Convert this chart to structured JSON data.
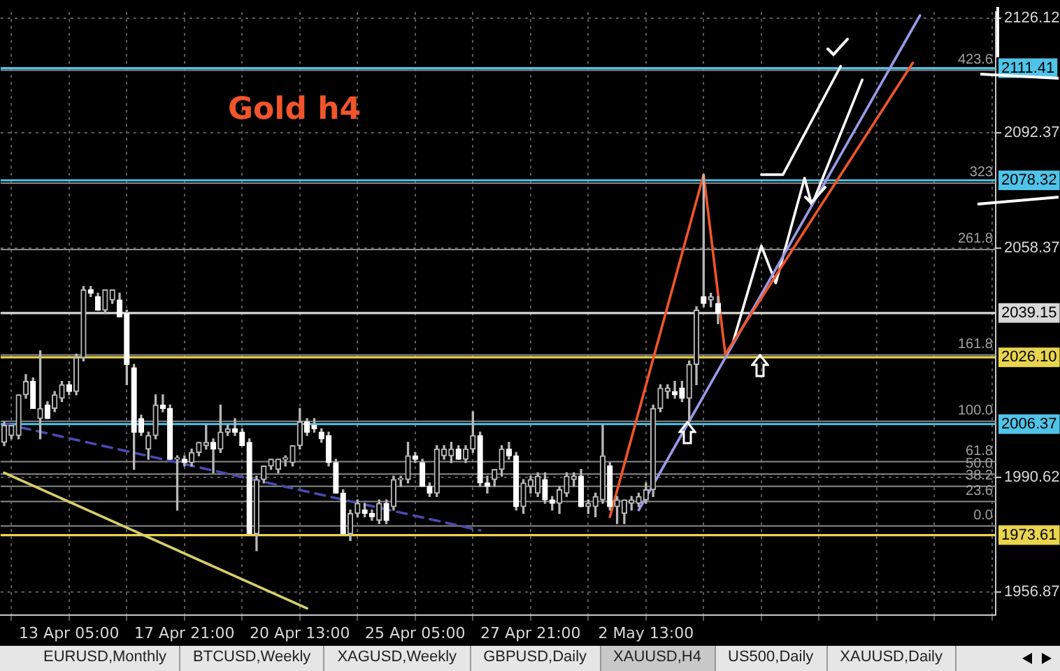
{
  "chart_data": {
    "type": "candlestick",
    "title": "Gold h4",
    "categories": [
      null,
      null,
      null,
      null,
      null,
      null,
      null,
      null,
      null,
      "13 Apr 05:00",
      null,
      null,
      null,
      null,
      null,
      null,
      null,
      null,
      null,
      null,
      null,
      null,
      null,
      null,
      null,
      "17 Apr 21:00",
      null,
      null,
      null,
      null,
      null,
      null,
      null,
      null,
      null,
      null,
      null,
      null,
      null,
      null,
      null,
      "20 Apr 13:00",
      null,
      null,
      null,
      null,
      null,
      null,
      null,
      null,
      null,
      null,
      null,
      null,
      null,
      null,
      null,
      "25 Apr 05:00",
      null,
      null,
      null,
      null,
      null,
      null,
      null,
      null,
      null,
      null,
      null,
      null,
      null,
      null,
      null,
      "27 Apr 21:00",
      null,
      null,
      null,
      null,
      null,
      null,
      null,
      null,
      null,
      null,
      null,
      null,
      null,
      null,
      null,
      "2 May 13:00",
      null,
      null,
      null,
      null,
      null,
      null,
      null,
      null,
      null,
      null,
      null,
      null,
      null,
      null,
      null,
      null,
      null,
      null,
      null,
      null,
      null,
      null,
      null,
      null,
      null,
      null,
      null,
      null,
      null,
      null,
      null,
      null,
      null,
      null,
      null,
      null,
      null,
      null,
      null,
      null,
      null,
      null,
      null,
      null,
      null,
      null,
      null,
      null
    ],
    "ohlc": [
      [
        2001,
        2007,
        2000,
        2006
      ],
      [
        2003,
        2006,
        2002,
        2006
      ],
      [
        2003,
        2015,
        2002,
        2015
      ],
      [
        2015,
        2021,
        2014,
        2019
      ],
      [
        2019,
        2020,
        2011,
        2011
      ],
      [
        2008,
        2028,
        2002,
        2011
      ],
      [
        2012,
        2013,
        2008,
        2008
      ],
      [
        2011,
        2016,
        2010,
        2015
      ],
      [
        2014,
        2019,
        2013,
        2018
      ],
      [
        2018,
        2019,
        2015,
        2016
      ],
      [
        2016,
        2027,
        2015,
        2026
      ],
      [
        2026,
        2047,
        2025,
        2046
      ],
      [
        2046,
        2047,
        2044,
        2045
      ],
      [
        2044,
        2045,
        2040,
        2040
      ],
      [
        2040,
        2046,
        2039,
        2046
      ],
      [
        2043,
        2046,
        2042,
        2046
      ],
      [
        2043,
        2045,
        2038,
        2038
      ],
      [
        2039,
        2040,
        2018,
        2024
      ],
      [
        2023,
        2024,
        1993,
        2004
      ],
      [
        2008,
        2009,
        2003,
        2004
      ],
      [
        1999,
        2004,
        1996,
        2003
      ],
      [
        2003,
        2015,
        2002,
        2012
      ],
      [
        2012,
        2015,
        2010,
        2011
      ],
      [
        2011,
        2012,
        1996,
        1996
      ],
      [
        1996,
        1997,
        1981,
        1996
      ],
      [
        1996,
        1997,
        1994,
        1995
      ],
      [
        1995,
        1999,
        1994,
        1998
      ],
      [
        1998,
        2001,
        1997,
        2001
      ],
      [
        2000,
        2006,
        1999,
        2001
      ],
      [
        2001,
        2002,
        1992,
        1999
      ],
      [
        1999,
        2012,
        1998,
        2004
      ],
      [
        2004,
        2006,
        2003,
        2005
      ],
      [
        2005,
        2008,
        2003,
        2004
      ],
      [
        2004,
        2005,
        2000,
        2000
      ],
      [
        2001,
        2002,
        1974,
        1974
      ],
      [
        1974,
        1991,
        1969,
        1990
      ],
      [
        1990,
        1994,
        1989,
        1994
      ],
      [
        1994,
        1996,
        1993,
        1996
      ],
      [
        1993,
        1996,
        1992,
        1996
      ],
      [
        1996,
        1997,
        1994,
        1996
      ],
      [
        1995,
        2000,
        1994,
        2000
      ],
      [
        2000,
        2011,
        1999,
        2007
      ],
      [
        2007,
        2008,
        2003,
        2004
      ],
      [
        2006,
        2008,
        2004,
        2005
      ],
      [
        2004,
        2005,
        2001,
        2002
      ],
      [
        2003,
        2004,
        1994,
        1995
      ],
      [
        1995,
        1996,
        1986,
        1986
      ],
      [
        1986,
        1987,
        1974,
        1974
      ],
      [
        1974,
        1981,
        1972,
        1980
      ],
      [
        1980,
        1984,
        1979,
        1983
      ],
      [
        1981,
        1983,
        1979,
        1980
      ],
      [
        1980,
        1981,
        1978,
        1979
      ],
      [
        1978,
        1984,
        1977,
        1983
      ],
      [
        1983,
        1984,
        1977,
        1978
      ],
      [
        1982,
        1991,
        1981,
        1990
      ],
      [
        1990,
        1991,
        1988,
        1990
      ],
      [
        1990,
        2001,
        1989,
        1997
      ],
      [
        1997,
        1998,
        1995,
        1996
      ],
      [
        1995,
        1996,
        1988,
        1988
      ],
      [
        1988,
        1989,
        1985,
        1986
      ],
      [
        1986,
        2000,
        1985,
        1999
      ],
      [
        1997,
        2000,
        1996,
        1999
      ],
      [
        1997,
        2001,
        1995,
        1999
      ],
      [
        1999,
        2000,
        1996,
        1996
      ],
      [
        1996,
        2000,
        1995,
        1999
      ],
      [
        1999,
        2010,
        1998,
        2003
      ],
      [
        2003,
        2004,
        1988,
        1989
      ],
      [
        1989,
        1991,
        1986,
        1988
      ],
      [
        1990,
        1993,
        1988,
        1993
      ],
      [
        1993,
        2000,
        1991,
        1999
      ],
      [
        1999,
        2001,
        1996,
        1997
      ],
      [
        1997,
        1998,
        1981,
        1982
      ],
      [
        1982,
        1990,
        1980,
        1989
      ],
      [
        1988,
        1991,
        1986,
        1990
      ],
      [
        1986,
        1992,
        1985,
        1991
      ],
      [
        1990,
        1992,
        1983,
        1984
      ],
      [
        1984,
        1985,
        1981,
        1983
      ],
      [
        1983,
        1988,
        1980,
        1987
      ],
      [
        1986,
        1992,
        1985,
        1991
      ],
      [
        1990,
        1992,
        1988,
        1991
      ],
      [
        1991,
        1993,
        1982,
        1982
      ],
      [
        1982,
        1984,
        1980,
        1983
      ],
      [
        1982,
        1986,
        1979,
        1985
      ],
      [
        1984,
        2006,
        1983,
        1997
      ],
      [
        1994,
        1995,
        1981,
        1982
      ],
      [
        1982,
        1985,
        1977,
        1984
      ],
      [
        1980,
        1984,
        1977,
        1984
      ],
      [
        1983,
        1985,
        1981,
        1984
      ],
      [
        1983,
        1986,
        1982,
        1985
      ],
      [
        1984,
        1989,
        1983,
        1987
      ],
      [
        1987,
        2012,
        1985,
        2011
      ],
      [
        2011,
        2018,
        2010,
        2017
      ],
      [
        2016,
        2018,
        2014,
        2017
      ],
      [
        2016,
        2019,
        2014,
        2015
      ],
      [
        2017,
        2019,
        2013,
        2014
      ],
      [
        2014,
        2025,
        2007,
        2024
      ],
      [
        2024,
        2041,
        2018,
        2040
      ],
      [
        2044,
        2080,
        2041,
        2042
      ],
      [
        2043,
        2045,
        2041,
        2044
      ],
      [
        2042,
        2044,
        2036,
        2039
      ],
      null,
      null,
      null,
      null,
      null,
      null,
      null,
      null,
      null,
      null,
      null,
      null,
      null,
      null,
      null,
      null,
      null,
      null,
      null,
      null,
      null,
      null,
      null,
      null,
      null,
      null,
      null,
      null,
      null,
      null,
      null,
      null,
      null,
      null,
      null,
      null,
      null,
      null
    ],
    "series": [
      {
        "type": "line",
        "color": "#f0552b",
        "values": [
          null,
          null,
          null,
          null,
          null,
          null,
          null,
          null,
          null,
          null,
          null,
          null,
          null,
          null,
          null,
          null,
          null,
          null,
          null,
          null,
          null,
          null,
          null,
          null,
          null,
          null,
          null,
          null,
          null,
          null,
          null,
          null,
          null,
          null,
          null,
          null,
          null,
          null,
          null,
          null,
          null,
          null,
          null,
          null,
          null,
          null,
          null,
          null,
          null,
          null,
          null,
          null,
          null,
          null,
          null,
          null,
          null,
          null,
          null,
          null,
          null,
          null,
          null,
          null,
          null,
          null,
          null,
          null,
          null,
          null,
          null,
          null,
          null,
          null,
          null,
          null,
          null,
          null,
          null,
          null,
          null,
          null,
          null,
          null,
          1979,
          null,
          null,
          null,
          null,
          null,
          null,
          null,
          null,
          null,
          null,
          null,
          null,
          2080,
          null,
          null,
          2027,
          null,
          null,
          null,
          null,
          null,
          null,
          null,
          null,
          null,
          null,
          null,
          null,
          null,
          null,
          null,
          null,
          null,
          null,
          null,
          null,
          null,
          null,
          null,
          null,
          null,
          null,
          null,
          null,
          null,
          null,
          null,
          null,
          null,
          null,
          null,
          null,
          null
        ]
      },
      {
        "type": "line",
        "color": "#f0552b",
        "values": [
          null,
          null,
          null,
          null,
          null,
          null,
          null,
          null,
          null,
          null,
          null,
          null,
          null,
          null,
          null,
          null,
          null,
          null,
          null,
          null,
          null,
          null,
          null,
          null,
          null,
          null,
          null,
          null,
          null,
          null,
          null,
          null,
          null,
          null,
          null,
          null,
          null,
          null,
          null,
          null,
          null,
          null,
          null,
          null,
          null,
          null,
          null,
          null,
          null,
          null,
          null,
          null,
          null,
          null,
          null,
          null,
          null,
          null,
          null,
          null,
          null,
          null,
          null,
          null,
          null,
          null,
          null,
          null,
          null,
          null,
          null,
          null,
          null,
          null,
          null,
          null,
          null,
          null,
          null,
          null,
          null,
          null,
          null,
          null,
          null,
          null,
          null,
          null,
          null,
          null,
          null,
          null,
          null,
          null,
          null,
          null,
          null,
          null,
          null,
          null,
          2027,
          null,
          null,
          null,
          null,
          null,
          null,
          null,
          null,
          null,
          null,
          null,
          null,
          null,
          null,
          null,
          null,
          null,
          null,
          null,
          null,
          null,
          null,
          null,
          null,
          null,
          2113,
          null,
          null,
          null,
          null,
          null,
          null,
          null,
          null,
          null,
          null,
          null
        ]
      },
      {
        "type": "line",
        "color": "#9a9ae8",
        "values": [
          null,
          null,
          null,
          null,
          null,
          null,
          null,
          null,
          null,
          null,
          null,
          null,
          null,
          null,
          null,
          null,
          null,
          null,
          null,
          null,
          null,
          null,
          null,
          null,
          null,
          null,
          null,
          null,
          null,
          null,
          null,
          null,
          null,
          null,
          null,
          null,
          null,
          null,
          null,
          null,
          null,
          null,
          null,
          null,
          null,
          null,
          null,
          null,
          null,
          null,
          null,
          null,
          null,
          null,
          null,
          null,
          null,
          null,
          null,
          null,
          null,
          null,
          null,
          null,
          null,
          null,
          null,
          null,
          null,
          null,
          null,
          null,
          null,
          null,
          null,
          null,
          null,
          null,
          null,
          null,
          null,
          null,
          null,
          null,
          null,
          null,
          null,
          null,
          1981,
          null,
          null,
          null,
          null,
          null,
          null,
          null,
          null,
          null,
          null,
          null,
          null,
          null,
          null,
          null,
          null,
          null,
          null,
          null,
          null,
          null,
          null,
          null,
          null,
          null,
          null,
          null,
          null,
          null,
          null,
          null,
          null,
          null,
          null,
          null,
          null,
          null,
          null,
          2127,
          null,
          null,
          null,
          null,
          null,
          null,
          null,
          null,
          null,
          null
        ]
      },
      {
        "type": "line",
        "color": "#ffffff",
        "values": [
          null,
          null,
          null,
          null,
          null,
          null,
          null,
          null,
          null,
          null,
          null,
          null,
          null,
          null,
          null,
          null,
          null,
          null,
          null,
          null,
          null,
          null,
          null,
          null,
          null,
          null,
          null,
          null,
          null,
          null,
          null,
          null,
          null,
          null,
          null,
          null,
          null,
          null,
          null,
          null,
          null,
          null,
          null,
          null,
          null,
          null,
          null,
          null,
          null,
          null,
          null,
          null,
          null,
          null,
          null,
          null,
          null,
          null,
          null,
          null,
          null,
          null,
          null,
          null,
          null,
          null,
          null,
          null,
          null,
          null,
          null,
          null,
          null,
          null,
          null,
          null,
          null,
          null,
          null,
          null,
          null,
          null,
          null,
          null,
          null,
          null,
          null,
          null,
          null,
          null,
          null,
          null,
          null,
          null,
          null,
          null,
          null,
          null,
          null,
          null,
          null,
          2030,
          null,
          null,
          null,
          2059,
          null,
          2048,
          null,
          null,
          null,
          2079,
          2071,
          null,
          null,
          null,
          null,
          null,
          null,
          2108,
          null,
          null,
          null,
          null,
          null,
          null,
          null,
          null,
          null,
          null,
          null,
          null,
          null,
          null,
          null,
          null,
          null,
          null
        ]
      },
      {
        "type": "line",
        "color": "#ffffff",
        "values": [
          null,
          null,
          null,
          null,
          null,
          null,
          null,
          null,
          null,
          null,
          null,
          null,
          null,
          null,
          null,
          null,
          null,
          null,
          null,
          null,
          null,
          null,
          null,
          null,
          null,
          null,
          null,
          null,
          null,
          null,
          null,
          null,
          null,
          null,
          null,
          null,
          null,
          null,
          null,
          null,
          null,
          null,
          null,
          null,
          null,
          null,
          null,
          null,
          null,
          null,
          null,
          null,
          null,
          null,
          null,
          null,
          null,
          null,
          null,
          null,
          null,
          null,
          null,
          null,
          null,
          null,
          null,
          null,
          null,
          null,
          null,
          null,
          null,
          null,
          null,
          null,
          null,
          null,
          null,
          null,
          null,
          null,
          null,
          null,
          null,
          null,
          null,
          null,
          null,
          null,
          null,
          null,
          null,
          null,
          null,
          null,
          null,
          null,
          null,
          null,
          null,
          null,
          null,
          null,
          null,
          2080,
          null,
          null,
          2080,
          null,
          null,
          null,
          null,
          null,
          null,
          null,
          2112,
          null,
          null,
          null,
          null,
          null,
          null,
          null,
          null,
          null,
          null,
          null,
          null,
          null,
          null,
          null,
          null,
          null,
          null,
          null,
          null,
          null
        ]
      },
      {
        "type": "line",
        "color": "#d8cf6a",
        "values": [
          1992,
          null,
          null,
          null,
          null,
          null,
          null,
          null,
          null,
          null,
          null,
          null,
          null,
          null,
          null,
          null,
          null,
          null,
          null,
          null,
          null,
          null,
          null,
          null,
          null,
          null,
          null,
          null,
          null,
          null,
          null,
          null,
          null,
          null,
          null,
          null,
          null,
          null,
          null,
          null,
          null,
          null,
          1952,
          null,
          null,
          null,
          null,
          null,
          null,
          null,
          null,
          null,
          null,
          null,
          null,
          null,
          null,
          null,
          null,
          null,
          null,
          null,
          null,
          null,
          null,
          null,
          null,
          null,
          null,
          null,
          null,
          null,
          null,
          null,
          null,
          null,
          null,
          null,
          null,
          null,
          null,
          null,
          null,
          null,
          null,
          null,
          null,
          null,
          null,
          null,
          null,
          null,
          null,
          null,
          null,
          null,
          null,
          null,
          null,
          null,
          null,
          null,
          null,
          null,
          null,
          null,
          null,
          null,
          null,
          null,
          null,
          null,
          null,
          null,
          null,
          null,
          null,
          null,
          null,
          null,
          null,
          null,
          null,
          null,
          null,
          null,
          null,
          null,
          null,
          null,
          null,
          null,
          null,
          null,
          null,
          null,
          null,
          null
        ]
      },
      {
        "type": "line",
        "color": "#4a4ab0",
        "line_style": "dashed",
        "values": [
          2006.5,
          null,
          null,
          null,
          null,
          null,
          null,
          null,
          null,
          null,
          null,
          null,
          null,
          null,
          null,
          null,
          null,
          null,
          null,
          null,
          null,
          null,
          null,
          null,
          null,
          null,
          null,
          null,
          null,
          null,
          null,
          null,
          null,
          null,
          null,
          null,
          null,
          null,
          null,
          null,
          null,
          null,
          null,
          null,
          null,
          null,
          null,
          null,
          null,
          null,
          null,
          null,
          null,
          null,
          null,
          null,
          null,
          null,
          null,
          null,
          null,
          null,
          null,
          null,
          null,
          null,
          1975,
          null,
          null,
          null,
          null,
          null,
          null,
          null,
          null,
          null,
          null,
          null,
          null,
          null,
          null,
          null,
          null,
          null,
          null,
          null,
          null,
          null,
          null,
          null,
          null,
          null,
          null,
          null,
          null,
          null,
          null,
          null,
          null,
          null,
          null,
          null,
          null,
          null,
          null,
          null,
          null,
          null,
          null,
          null,
          null,
          null,
          null,
          null,
          null,
          null,
          null,
          null,
          null,
          null,
          null,
          null,
          null,
          null,
          null,
          null,
          null,
          null,
          null,
          null,
          null,
          null,
          null,
          null,
          null,
          null,
          null,
          null
        ]
      }
    ],
    "ylim": [
      1950,
      2128
    ],
    "yticks": [
      2126.12,
      2092.37,
      2058.37,
      1990.62,
      1956.87
    ],
    "ref_lines": [
      {
        "axis": "y",
        "value": 2111.41,
        "label": "2111.41",
        "color": "#4fc3e8"
      },
      {
        "axis": "y",
        "value": 2078.32,
        "label": "2078.32",
        "color": "#4fc3e8"
      },
      {
        "axis": "y",
        "value": 2039.15,
        "label": "2039.15",
        "color": "#d8d8d8"
      },
      {
        "axis": "y",
        "value": 2026.1,
        "label": "2026.10",
        "color": "#e8d44d"
      },
      {
        "axis": "y",
        "value": 2006.37,
        "label": "2006.37",
        "color": "#4fc3e8"
      },
      {
        "axis": "y",
        "value": 1973.61,
        "label": "1973.61",
        "color": "#e8d44d"
      },
      {
        "axis": "y",
        "value": 2110.8
      },
      {
        "axis": "y",
        "value": 2077.5
      },
      {
        "axis": "y",
        "value": 2057.9
      },
      {
        "axis": "y",
        "value": 2026.8
      },
      {
        "axis": "y",
        "value": 2007.2
      },
      {
        "axis": "y",
        "value": 1995.3
      },
      {
        "axis": "y",
        "value": 1991.6
      },
      {
        "axis": "y",
        "value": 1988.0
      },
      {
        "axis": "y",
        "value": 1983.5
      },
      {
        "axis": "y",
        "value": 1976.3
      }
    ],
    "annotations": [
      {
        "text": "423.6",
        "y": 2110.8
      },
      {
        "text": "323",
        "y": 2077.5
      },
      {
        "text": "261.8",
        "y": 2057.9
      },
      {
        "text": "161.8",
        "y": 2026.8
      },
      {
        "text": "100.0",
        "y": 2007.2
      },
      {
        "text": "61.8",
        "y": 1995.3
      },
      {
        "text": "50.0",
        "y": 1991.6
      },
      {
        "text": "38.2",
        "y": 1988.0
      },
      {
        "text": "23.6",
        "y": 1983.5
      },
      {
        "text": "0.0",
        "y": 1976.3
      },
      "EURUSD,Monthly",
      "BTCUSD,Weekly",
      "XAGUSD,Weekly",
      "GBPUSD,Daily",
      "XAUUSD,H4",
      "US500,Daily",
      "XAUUSD,Daily"
    ],
    "grid": true,
    "legend": false
  }
}
